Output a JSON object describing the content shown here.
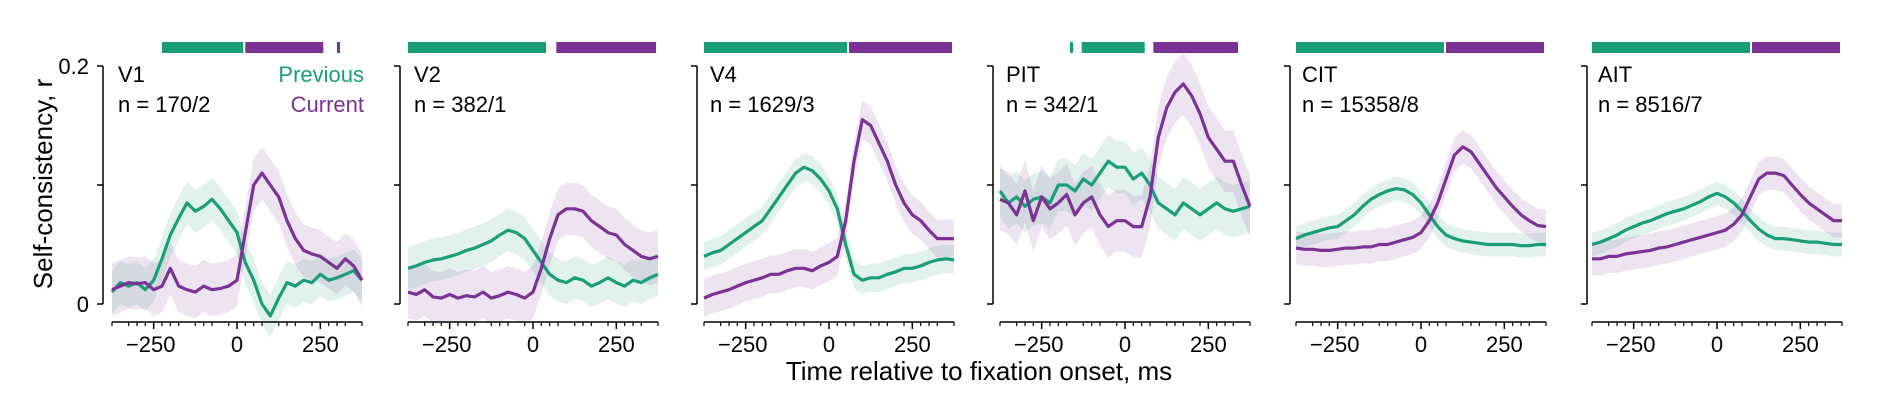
{
  "figure": {
    "ylabel": "Self-consistency, r",
    "xlabel": "Time relative to fixation onset, ms",
    "y_tick_labels": [
      "0.2",
      "0"
    ],
    "x_tick_labels": [
      "-250",
      "0",
      "250"
    ]
  },
  "legend": {
    "previous": "Previous",
    "current": "Current"
  },
  "colors": {
    "previous": "#1a9e77",
    "current": "#7b3294"
  },
  "chart_data": [
    {
      "type": "line",
      "title": "V1",
      "subtitle": "n = 170/2",
      "xlim": [
        -375,
        375
      ],
      "ylim": [
        0,
        0.2
      ],
      "x": [
        -375,
        -350,
        -325,
        -300,
        -275,
        -250,
        -225,
        -200,
        -175,
        -150,
        -125,
        -100,
        -75,
        -50,
        -25,
        0,
        25,
        50,
        75,
        100,
        125,
        150,
        175,
        200,
        225,
        250,
        275,
        300,
        325,
        350,
        375
      ],
      "series": [
        {
          "name": "Previous",
          "values": [
            0.01,
            0.018,
            0.015,
            0.018,
            0.012,
            0.02,
            0.038,
            0.058,
            0.072,
            0.085,
            0.078,
            0.082,
            0.088,
            0.08,
            0.07,
            0.06,
            0.035,
            0.02,
            0.0,
            -0.01,
            0.005,
            0.018,
            0.015,
            0.02,
            0.018,
            0.025,
            0.02,
            0.022,
            0.025,
            0.028,
            0.02
          ]
        },
        {
          "name": "Current",
          "values": [
            0.012,
            0.015,
            0.018,
            0.017,
            0.018,
            0.012,
            0.015,
            0.03,
            0.015,
            0.012,
            0.01,
            0.015,
            0.012,
            0.013,
            0.015,
            0.02,
            0.06,
            0.1,
            0.11,
            0.1,
            0.09,
            0.07,
            0.055,
            0.045,
            0.042,
            0.04,
            0.035,
            0.03,
            0.038,
            0.032,
            0.02
          ]
        }
      ],
      "epochs": [
        {
          "series": "Previous",
          "range": [
            -225,
            25
          ]
        },
        {
          "series": "Current",
          "range": [
            25,
            265
          ]
        },
        {
          "series": "Current",
          "range": [
            300,
            310
          ]
        }
      ],
      "show_legend": true
    },
    {
      "type": "line",
      "title": "V2",
      "subtitle": "n = 382/1",
      "xlim": [
        -375,
        375
      ],
      "ylim": [
        0,
        0.2
      ],
      "x": [
        -375,
        -350,
        -325,
        -300,
        -275,
        -250,
        -225,
        -200,
        -175,
        -150,
        -125,
        -100,
        -75,
        -50,
        -25,
        0,
        25,
        50,
        75,
        100,
        125,
        150,
        175,
        200,
        225,
        250,
        275,
        300,
        325,
        350,
        375
      ],
      "series": [
        {
          "name": "Previous",
          "values": [
            0.03,
            0.032,
            0.035,
            0.037,
            0.038,
            0.04,
            0.042,
            0.045,
            0.047,
            0.05,
            0.053,
            0.058,
            0.062,
            0.06,
            0.055,
            0.045,
            0.035,
            0.025,
            0.02,
            0.018,
            0.022,
            0.02,
            0.015,
            0.018,
            0.022,
            0.018,
            0.015,
            0.02,
            0.018,
            0.022,
            0.025
          ]
        },
        {
          "name": "Current",
          "values": [
            0.01,
            0.008,
            0.012,
            0.006,
            0.005,
            0.008,
            0.005,
            0.007,
            0.006,
            0.01,
            0.005,
            0.007,
            0.01,
            0.008,
            0.005,
            0.01,
            0.03,
            0.055,
            0.075,
            0.08,
            0.08,
            0.078,
            0.07,
            0.065,
            0.06,
            0.058,
            0.05,
            0.045,
            0.04,
            0.038,
            0.04
          ]
        }
      ],
      "epochs": [
        {
          "series": "Previous",
          "range": [
            -375,
            45
          ]
        },
        {
          "series": "Current",
          "range": [
            70,
            375
          ]
        }
      ],
      "show_legend": false
    },
    {
      "type": "line",
      "title": "V4",
      "subtitle": "n = 1629/3",
      "xlim": [
        -375,
        375
      ],
      "ylim": [
        0,
        0.2
      ],
      "x": [
        -375,
        -350,
        -325,
        -300,
        -275,
        -250,
        -225,
        -200,
        -175,
        -150,
        -125,
        -100,
        -75,
        -50,
        -25,
        0,
        25,
        50,
        75,
        100,
        125,
        150,
        175,
        200,
        225,
        250,
        275,
        300,
        325,
        350,
        375
      ],
      "series": [
        {
          "name": "Previous",
          "values": [
            0.04,
            0.043,
            0.045,
            0.05,
            0.055,
            0.06,
            0.065,
            0.07,
            0.08,
            0.09,
            0.1,
            0.11,
            0.115,
            0.112,
            0.105,
            0.095,
            0.08,
            0.05,
            0.025,
            0.02,
            0.022,
            0.022,
            0.025,
            0.027,
            0.03,
            0.03,
            0.032,
            0.035,
            0.037,
            0.038,
            0.037
          ]
        },
        {
          "name": "Current",
          "values": [
            0.005,
            0.008,
            0.01,
            0.012,
            0.015,
            0.018,
            0.02,
            0.022,
            0.025,
            0.025,
            0.028,
            0.03,
            0.03,
            0.028,
            0.032,
            0.035,
            0.04,
            0.07,
            0.12,
            0.155,
            0.15,
            0.135,
            0.12,
            0.1,
            0.085,
            0.075,
            0.07,
            0.062,
            0.055,
            0.055,
            0.055
          ]
        }
      ],
      "epochs": [
        {
          "series": "Previous",
          "range": [
            -375,
            60
          ]
        },
        {
          "series": "Current",
          "range": [
            60,
            375
          ]
        }
      ],
      "show_legend": false
    },
    {
      "type": "line",
      "title": "PIT",
      "subtitle": "n = 342/1",
      "xlim": [
        -375,
        375
      ],
      "ylim": [
        0,
        0.2
      ],
      "x": [
        -375,
        -350,
        -325,
        -300,
        -275,
        -250,
        -225,
        -200,
        -175,
        -150,
        -125,
        -100,
        -75,
        -50,
        -25,
        0,
        25,
        50,
        75,
        100,
        125,
        150,
        175,
        200,
        225,
        250,
        275,
        300,
        325,
        350,
        375
      ],
      "series": [
        {
          "name": "Previous",
          "values": [
            0.095,
            0.085,
            0.09,
            0.082,
            0.088,
            0.09,
            0.085,
            0.1,
            0.1,
            0.095,
            0.105,
            0.1,
            0.11,
            0.12,
            0.115,
            0.115,
            0.105,
            0.11,
            0.1,
            0.085,
            0.08,
            0.075,
            0.085,
            0.08,
            0.075,
            0.08,
            0.085,
            0.08,
            0.078,
            0.08,
            0.082
          ]
        },
        {
          "name": "Current",
          "values": [
            0.088,
            0.085,
            0.075,
            0.095,
            0.07,
            0.09,
            0.08,
            0.085,
            0.092,
            0.075,
            0.085,
            0.09,
            0.075,
            0.065,
            0.07,
            0.07,
            0.065,
            0.065,
            0.09,
            0.14,
            0.165,
            0.178,
            0.185,
            0.175,
            0.16,
            0.14,
            0.13,
            0.12,
            0.12,
            0.1,
            0.082
          ]
        }
      ],
      "epochs": [
        {
          "series": "Previous",
          "range": [
            -165,
            -155
          ]
        },
        {
          "series": "Previous",
          "range": [
            -130,
            65
          ]
        },
        {
          "series": "Current",
          "range": [
            85,
            345
          ]
        }
      ],
      "show_legend": false
    },
    {
      "type": "line",
      "title": "CIT",
      "subtitle": "n = 15358/8",
      "xlim": [
        -375,
        375
      ],
      "ylim": [
        0,
        0.2
      ],
      "x": [
        -375,
        -350,
        -325,
        -300,
        -275,
        -250,
        -225,
        -200,
        -175,
        -150,
        -125,
        -100,
        -75,
        -50,
        -25,
        0,
        25,
        50,
        75,
        100,
        125,
        150,
        175,
        200,
        225,
        250,
        275,
        300,
        325,
        350,
        375
      ],
      "series": [
        {
          "name": "Previous",
          "values": [
            0.055,
            0.058,
            0.06,
            0.062,
            0.064,
            0.065,
            0.07,
            0.075,
            0.082,
            0.088,
            0.092,
            0.095,
            0.097,
            0.096,
            0.092,
            0.085,
            0.075,
            0.065,
            0.058,
            0.055,
            0.053,
            0.052,
            0.051,
            0.05,
            0.05,
            0.05,
            0.05,
            0.049,
            0.049,
            0.05,
            0.05
          ]
        },
        {
          "name": "Current",
          "values": [
            0.047,
            0.046,
            0.046,
            0.045,
            0.045,
            0.046,
            0.047,
            0.047,
            0.048,
            0.048,
            0.05,
            0.05,
            0.052,
            0.054,
            0.056,
            0.06,
            0.07,
            0.085,
            0.105,
            0.125,
            0.132,
            0.128,
            0.118,
            0.108,
            0.098,
            0.09,
            0.082,
            0.075,
            0.07,
            0.066,
            0.065
          ]
        }
      ],
      "epochs": [
        {
          "series": "Previous",
          "range": [
            -375,
            75
          ]
        },
        {
          "series": "Current",
          "range": [
            75,
            375
          ]
        }
      ],
      "show_legend": false
    },
    {
      "type": "line",
      "title": "AIT",
      "subtitle": "n = 8516/7",
      "xlim": [
        -375,
        375
      ],
      "ylim": [
        0,
        0.2
      ],
      "x": [
        -375,
        -350,
        -325,
        -300,
        -275,
        -250,
        -225,
        -200,
        -175,
        -150,
        -125,
        -100,
        -75,
        -50,
        -25,
        0,
        25,
        50,
        75,
        100,
        125,
        150,
        175,
        200,
        225,
        250,
        275,
        300,
        325,
        350,
        375
      ],
      "series": [
        {
          "name": "Previous",
          "values": [
            0.05,
            0.052,
            0.055,
            0.058,
            0.062,
            0.065,
            0.068,
            0.07,
            0.073,
            0.076,
            0.078,
            0.08,
            0.083,
            0.086,
            0.09,
            0.093,
            0.09,
            0.085,
            0.078,
            0.07,
            0.063,
            0.058,
            0.055,
            0.055,
            0.054,
            0.053,
            0.052,
            0.052,
            0.051,
            0.05,
            0.05
          ]
        },
        {
          "name": "Current",
          "values": [
            0.038,
            0.038,
            0.04,
            0.04,
            0.042,
            0.043,
            0.044,
            0.045,
            0.047,
            0.048,
            0.05,
            0.052,
            0.054,
            0.056,
            0.058,
            0.06,
            0.062,
            0.067,
            0.075,
            0.09,
            0.105,
            0.11,
            0.11,
            0.108,
            0.1,
            0.092,
            0.085,
            0.08,
            0.075,
            0.07,
            0.07
          ]
        }
      ],
      "epochs": [
        {
          "series": "Previous",
          "range": [
            -375,
            105
          ]
        },
        {
          "series": "Current",
          "range": [
            105,
            375
          ]
        }
      ],
      "show_legend": false
    }
  ]
}
